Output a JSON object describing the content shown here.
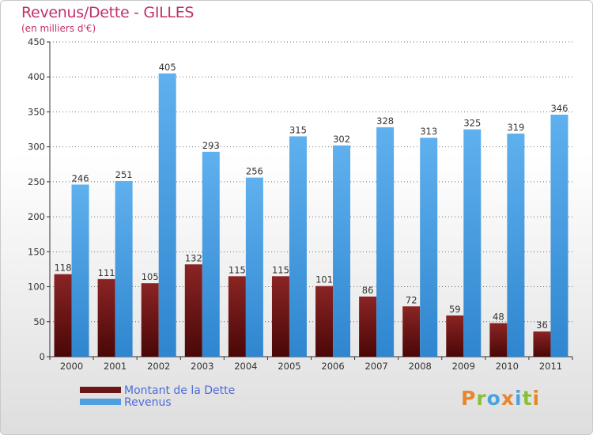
{
  "title": "Revenus/Dette - GILLES",
  "subtitle": "(en milliers d'€)",
  "brand": {
    "text": "Proxiti",
    "letter_colors": [
      "#e8862e",
      "#8bbf3a",
      "#4aa3df",
      "#e8862e",
      "#4aa3df",
      "#8bbf3a",
      "#e8862e"
    ]
  },
  "colors": {
    "dette": "#6b1616",
    "revenus": "#4e9fe0",
    "axis": "#333333",
    "grid": "#000000",
    "title": "#c0306a",
    "legend_text": "#4d6bd8"
  },
  "legend": [
    {
      "label": "Montant de la Dette",
      "color": "#6b1616"
    },
    {
      "label": "Revenus",
      "color": "#4e9fe0"
    }
  ],
  "chart_data": {
    "type": "bar",
    "title": "Revenus/Dette - GILLES",
    "subtitle": "(en milliers d'€)",
    "xlabel": "",
    "ylabel": "",
    "ylim": [
      0,
      450
    ],
    "yticks": [
      0,
      50,
      100,
      150,
      200,
      250,
      300,
      350,
      400,
      450
    ],
    "grid": true,
    "legend_position": "bottom-left",
    "categories": [
      "2000",
      "2001",
      "2002",
      "2003",
      "2004",
      "2005",
      "2006",
      "2007",
      "2008",
      "2009",
      "2010",
      "2011"
    ],
    "series": [
      {
        "name": "Montant de la Dette",
        "values": [
          118,
          111,
          105,
          132,
          115,
          115,
          101,
          86,
          72,
          59,
          48,
          36
        ]
      },
      {
        "name": "Revenus",
        "values": [
          246,
          251,
          405,
          293,
          256,
          315,
          302,
          328,
          313,
          325,
          319,
          346
        ]
      }
    ]
  }
}
